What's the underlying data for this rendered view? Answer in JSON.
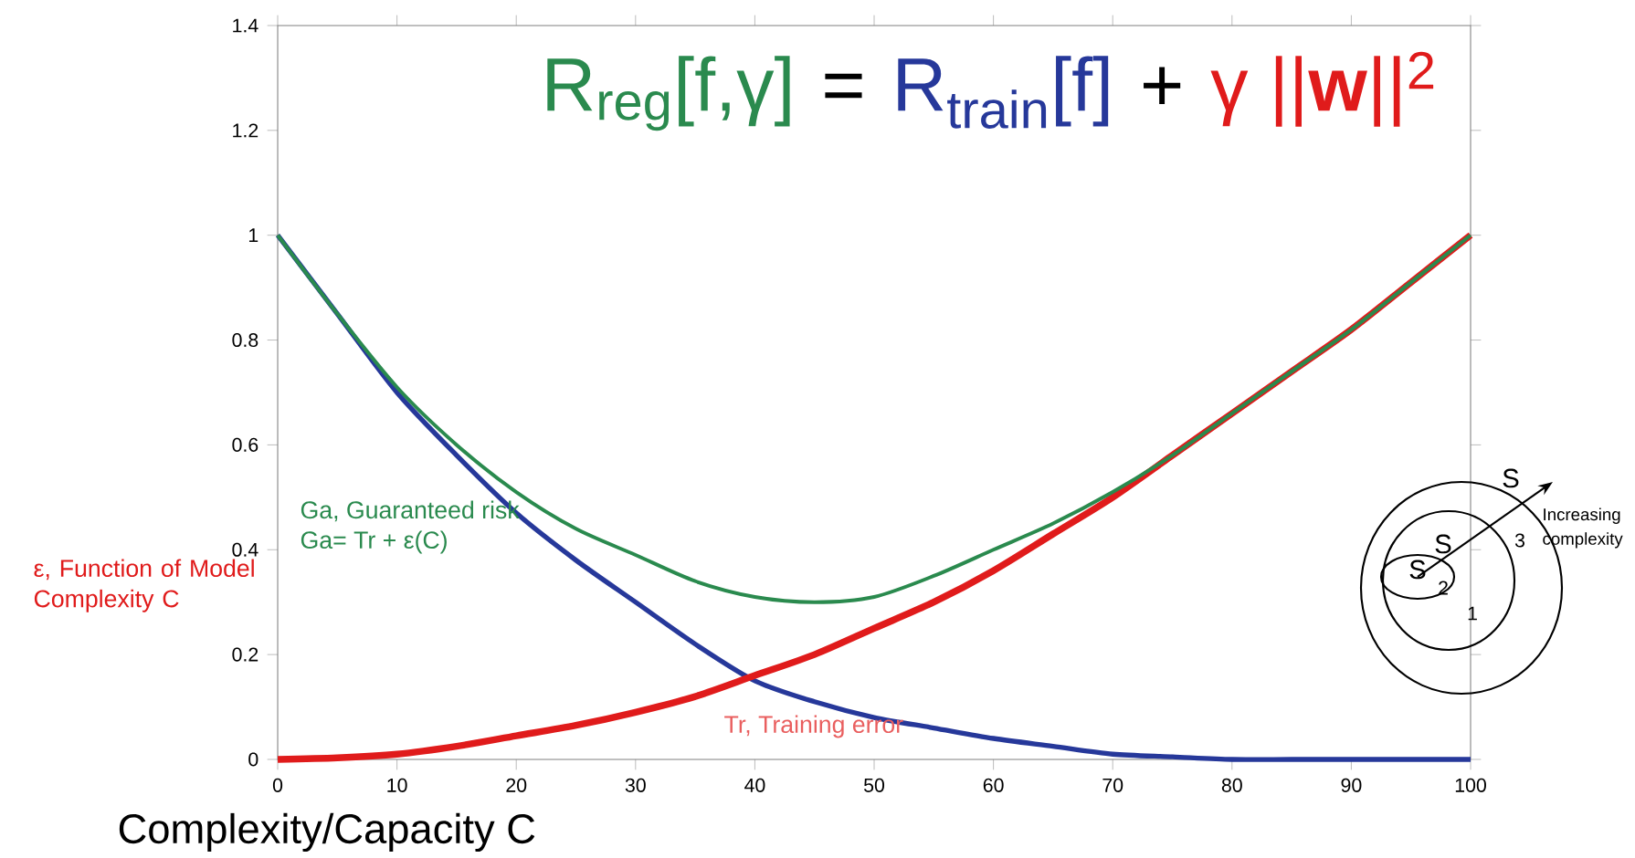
{
  "chart_data": {
    "type": "line",
    "xlabel": "Complexity/Capacity C",
    "marker": "none",
    "xlim": [
      0,
      100
    ],
    "ylim": [
      0,
      1.4
    ],
    "xticks": [
      0,
      10,
      20,
      30,
      40,
      50,
      60,
      70,
      80,
      90,
      100
    ],
    "yticks": [
      0,
      0.2,
      0.4,
      0.6,
      0.8,
      1,
      1.2,
      1.4
    ],
    "x": [
      0,
      5,
      10,
      15,
      20,
      25,
      30,
      35,
      40,
      45,
      50,
      55,
      60,
      65,
      70,
      75,
      80,
      85,
      90,
      95,
      100
    ],
    "series": [
      {
        "color": "#26389a",
        "values": [
          1,
          0.85,
          0.7,
          0.58,
          0.47,
          0.38,
          0.3,
          0.22,
          0.15,
          0.11,
          0.08,
          0.06,
          0.04,
          0.025,
          0.01,
          0.005,
          0,
          0,
          0,
          0,
          0
        ]
      },
      {
        "color": "#e01b1b",
        "values": [
          0,
          0.003,
          0.01,
          0.025,
          0.045,
          0.065,
          0.09,
          0.12,
          0.16,
          0.2,
          0.25,
          0.3,
          0.36,
          0.43,
          0.5,
          0.58,
          0.66,
          0.74,
          0.82,
          0.91,
          1
        ]
      },
      {
        "color": "#2a8a4e",
        "values": [
          1,
          0.85,
          0.71,
          0.6,
          0.51,
          0.44,
          0.39,
          0.34,
          0.31,
          0.3,
          0.31,
          0.35,
          0.4,
          0.45,
          0.51,
          0.58,
          0.66,
          0.74,
          0.82,
          0.91,
          1
        ]
      }
    ],
    "annotations": [
      "R$_{reg}$[f,γ]",
      "=",
      "R$_{train}$[f]",
      "+",
      "γ ||**w**||$^{2}$",
      "Ga, Guaranteed risk",
      "Ga= Tr + ε(C)",
      "Tr, Training error",
      "ε, Function of Model Complexity C",
      "S",
      "S",
      "S",
      "1",
      "2",
      "3",
      "Increasing complexity"
    ]
  }
}
